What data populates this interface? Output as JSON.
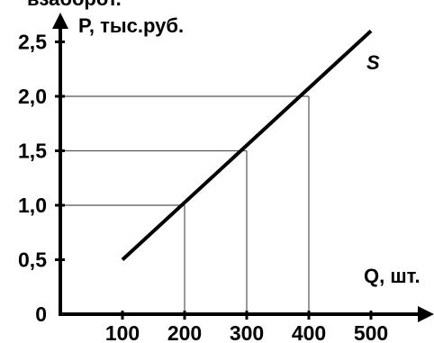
{
  "header_fragment": "взаборот.",
  "chart_data": {
    "type": "line",
    "xlabel": "Q, шт.",
    "ylabel": "P, тыс.руб.",
    "x_ticks": [
      "100",
      "200",
      "300",
      "400",
      "500"
    ],
    "x_tick_values": [
      100,
      200,
      300,
      400,
      500
    ],
    "y_ticks": [
      "0",
      "0,5",
      "1,0",
      "1,5",
      "2,0",
      "2,5"
    ],
    "y_tick_values": [
      0,
      0.5,
      1.0,
      1.5,
      2.0,
      2.5
    ],
    "xlim": [
      0,
      500
    ],
    "ylim": [
      0,
      2.5
    ],
    "grid": false,
    "series": [
      {
        "name": "S",
        "x": [
          100,
          500
        ],
        "y": [
          0.5,
          2.6
        ]
      }
    ],
    "reference_points": [
      {
        "x": 200,
        "y": 1.0
      },
      {
        "x": 300,
        "y": 1.5
      },
      {
        "x": 400,
        "y": 2.0
      }
    ],
    "colors": {
      "line": "#000000",
      "guide": "#555555",
      "axis": "#000000"
    }
  }
}
